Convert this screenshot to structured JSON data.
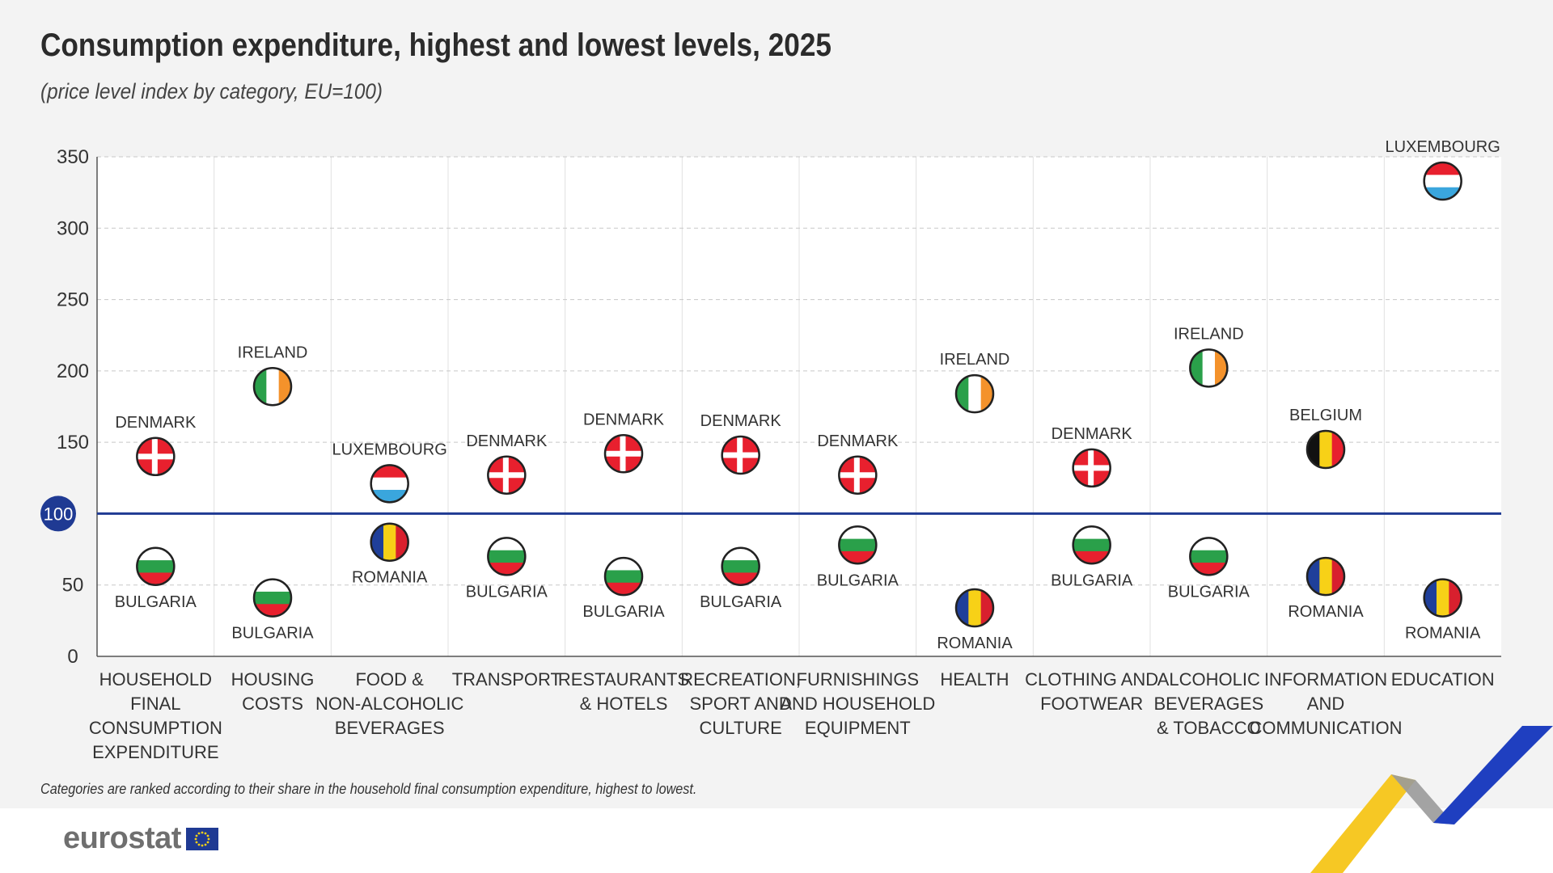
{
  "title": "Consumption expenditure, highest and lowest levels, 2025",
  "subtitle": "(price level index by category, EU=100)",
  "footnote": "Categories are ranked according to their share in the household final consumption expenditure, highest to lowest.",
  "logo_text": "eurostat",
  "flags": {
    "DENMARK": {
      "kind": "nordic",
      "colors": [
        "#e8202e",
        "#ffffff"
      ]
    },
    "BULGARIA": {
      "kind": "hstripes",
      "colors": [
        "#ffffff",
        "#2aa04a",
        "#e8202e"
      ]
    },
    "IRELAND": {
      "kind": "vstripes",
      "colors": [
        "#2aa04a",
        "#ffffff",
        "#f4922b"
      ]
    },
    "LUXEMBOURG": {
      "kind": "hstripes",
      "colors": [
        "#e8202e",
        "#ffffff",
        "#3aa6dd"
      ]
    },
    "ROMANIA": {
      "kind": "vstripes",
      "colors": [
        "#1f3f9a",
        "#f7d117",
        "#d8202e"
      ]
    },
    "BELGIUM": {
      "kind": "vstripes",
      "colors": [
        "#111111",
        "#f7d117",
        "#e8202e"
      ]
    }
  },
  "colors": {
    "reference_line": "#1f3a93",
    "grid": "#c8c8c8",
    "axis": "#555555"
  },
  "chart_data": {
    "type": "scatter",
    "title": "Consumption expenditure, highest and lowest levels, 2025",
    "subtitle": "(price level index by category, EU=100)",
    "ylim": [
      0,
      350
    ],
    "yticks": [
      0,
      50,
      100,
      150,
      200,
      250,
      300,
      350
    ],
    "reference_value": 100,
    "reference_label": "100",
    "grid": true,
    "categories": [
      "HOUSEHOLD FINAL CONSUMPTION EXPENDITURE",
      "HOUSING COSTS",
      "FOOD & NON-ALCOHOLIC BEVERAGES",
      "TRANSPORT",
      "RESTAURANTS & HOTELS",
      "RECREATION, SPORT AND CULTURE",
      "FURNISHINGS AND HOUSEHOLD EQUIPMENT",
      "HEALTH",
      "CLOTHING AND FOOTWEAR",
      "ALCOHOLIC BEVERAGES & TOBACCO",
      "INFORMATION AND COMMUNICATION",
      "EDUCATION"
    ],
    "category_lines": [
      [
        "HOUSEHOLD",
        "FINAL",
        "CONSUMPTION",
        "EXPENDITURE"
      ],
      [
        "HOUSING",
        "COSTS"
      ],
      [
        "FOOD &",
        "NON-ALCOHOLIC",
        "BEVERAGES"
      ],
      [
        "TRANSPORT"
      ],
      [
        "RESTAURANTS",
        "& HOTELS"
      ],
      [
        "RECREATION,",
        "SPORT AND",
        "CULTURE"
      ],
      [
        "FURNISHINGS",
        "AND HOUSEHOLD",
        "EQUIPMENT"
      ],
      [
        "HEALTH"
      ],
      [
        "CLOTHING AND",
        "FOOTWEAR"
      ],
      [
        "ALCOHOLIC",
        "BEVERAGES",
        "& TOBACCO"
      ],
      [
        "INFORMATION",
        "AND",
        "COMMUNICATION"
      ],
      [
        "EDUCATION"
      ]
    ],
    "highest": [
      {
        "country": "DENMARK",
        "value": 140
      },
      {
        "country": "IRELAND",
        "value": 189
      },
      {
        "country": "LUXEMBOURG",
        "value": 121
      },
      {
        "country": "DENMARK",
        "value": 127
      },
      {
        "country": "DENMARK",
        "value": 142
      },
      {
        "country": "DENMARK",
        "value": 141
      },
      {
        "country": "DENMARK",
        "value": 127
      },
      {
        "country": "IRELAND",
        "value": 184
      },
      {
        "country": "DENMARK",
        "value": 132
      },
      {
        "country": "IRELAND",
        "value": 202
      },
      {
        "country": "BELGIUM",
        "value": 145
      },
      {
        "country": "LUXEMBOURG",
        "value": 333
      }
    ],
    "lowest": [
      {
        "country": "BULGARIA",
        "value": 63
      },
      {
        "country": "BULGARIA",
        "value": 41
      },
      {
        "country": "ROMANIA",
        "value": 80
      },
      {
        "country": "BULGARIA",
        "value": 70
      },
      {
        "country": "BULGARIA",
        "value": 56
      },
      {
        "country": "BULGARIA",
        "value": 63
      },
      {
        "country": "BULGARIA",
        "value": 78
      },
      {
        "country": "ROMANIA",
        "value": 34
      },
      {
        "country": "BULGARIA",
        "value": 78
      },
      {
        "country": "BULGARIA",
        "value": 70
      },
      {
        "country": "ROMANIA",
        "value": 56
      },
      {
        "country": "ROMANIA",
        "value": 41
      }
    ]
  }
}
